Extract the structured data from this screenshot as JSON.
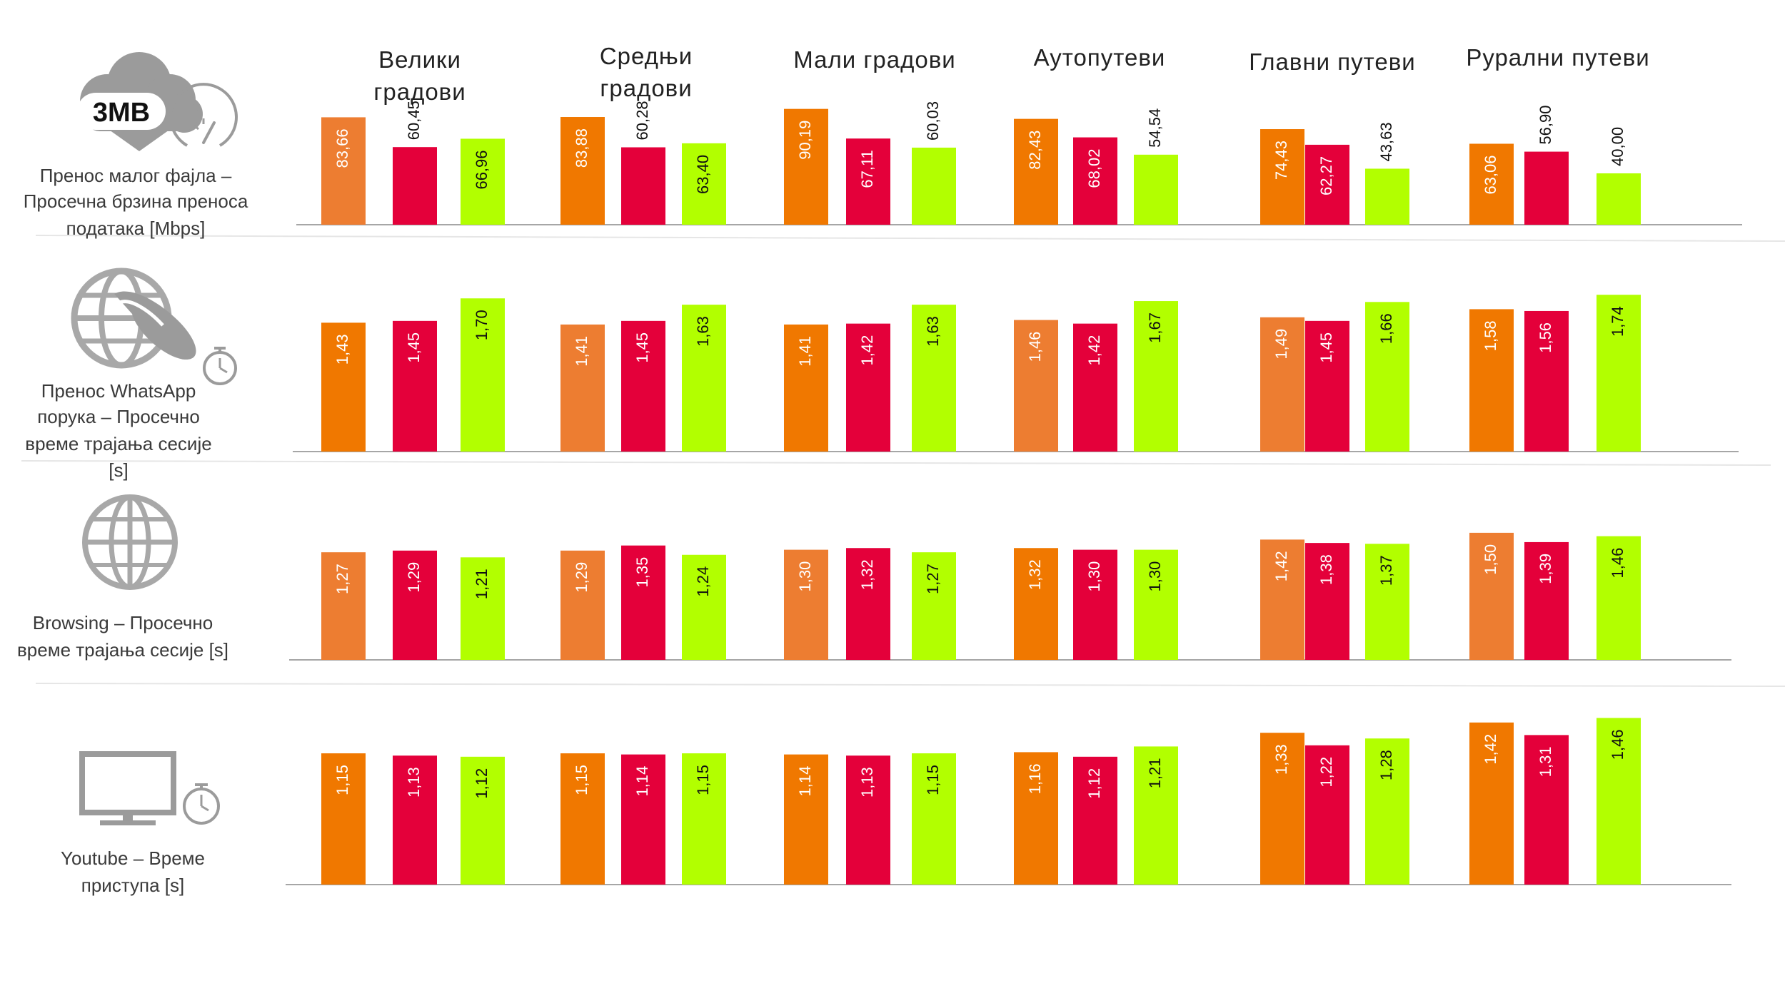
{
  "chart_data": {
    "type": "bar",
    "categories": [
      "Велики градови",
      "Средњи градови",
      "Мали градови",
      "Аутопутеви",
      "Главни путеви",
      "Рурални путеви"
    ],
    "colors": [
      "#F07800",
      "#E4003A",
      "#B2FF00"
    ],
    "alt_first_color": "#ED7D31",
    "panels": [
      {
        "label": "Пренос малог фајла – Просечна брзина преноса података [Mbps]",
        "icon": "cloud-download-icon",
        "icon_text": "3MB",
        "ylim": [
          0,
          100
        ],
        "values": [
          [
            83.66,
            60.45,
            66.96
          ],
          [
            83.88,
            60.28,
            63.4
          ],
          [
            90.19,
            67.11,
            60.03
          ],
          [
            82.43,
            68.02,
            54.54
          ],
          [
            74.43,
            62.27,
            43.63
          ],
          [
            63.06,
            56.9,
            40.0
          ]
        ],
        "labels": [
          [
            "83,66",
            "60,45",
            "66,96"
          ],
          [
            "83,88",
            "60,28",
            "63,40"
          ],
          [
            "90,19",
            "67,11",
            "60,03"
          ],
          [
            "82,43",
            "68,02",
            "54,54"
          ],
          [
            "74,43",
            "62,27",
            "43,63"
          ],
          [
            "63,06",
            "56,90",
            "40,00"
          ]
        ]
      },
      {
        "label": "Пренос WhatsApp порука – Просечно време трајања сесије [s]",
        "icon": "whatsapp-globe-timer-icon",
        "ylim": [
          0,
          1.9
        ],
        "values": [
          [
            1.43,
            1.45,
            1.7
          ],
          [
            1.41,
            1.45,
            1.63
          ],
          [
            1.41,
            1.42,
            1.63
          ],
          [
            1.46,
            1.42,
            1.67
          ],
          [
            1.49,
            1.45,
            1.66
          ],
          [
            1.58,
            1.56,
            1.74
          ]
        ],
        "labels": [
          [
            "1,43",
            "1,45",
            "1,70"
          ],
          [
            "1,41",
            "1,45",
            "1,63"
          ],
          [
            "1,41",
            "1,42",
            "1,63"
          ],
          [
            "1,46",
            "1,42",
            "1,67"
          ],
          [
            "1,49",
            "1,45",
            "1,66"
          ],
          [
            "1,58",
            "1,56",
            "1,74"
          ]
        ]
      },
      {
        "label": "Browsing – Просечно време трајања сесије [s]",
        "icon": "globe-icon",
        "ylim": [
          0,
          1.6
        ],
        "values": [
          [
            1.27,
            1.29,
            1.21
          ],
          [
            1.29,
            1.35,
            1.24
          ],
          [
            1.3,
            1.32,
            1.27
          ],
          [
            1.32,
            1.3,
            1.3
          ],
          [
            1.42,
            1.38,
            1.37
          ],
          [
            1.5,
            1.39,
            1.46
          ]
        ],
        "labels": [
          [
            "1,27",
            "1,29",
            "1,21"
          ],
          [
            "1,29",
            "1,35",
            "1,24"
          ],
          [
            "1,30",
            "1,32",
            "1,27"
          ],
          [
            "1,32",
            "1,30",
            "1,30"
          ],
          [
            "1,42",
            "1,38",
            "1,37"
          ],
          [
            "1,50",
            "1,39",
            "1,46"
          ]
        ]
      },
      {
        "label": "Youtube – Време приступа [s]",
        "icon": "monitor-timer-icon",
        "ylim": [
          0,
          1.5
        ],
        "values": [
          [
            1.15,
            1.13,
            1.12
          ],
          [
            1.15,
            1.14,
            1.15
          ],
          [
            1.14,
            1.13,
            1.15
          ],
          [
            1.16,
            1.12,
            1.21
          ],
          [
            1.33,
            1.22,
            1.28
          ],
          [
            1.42,
            1.31,
            1.46
          ]
        ],
        "labels": [
          [
            "1,15",
            "1,13",
            "1,12"
          ],
          [
            "1,15",
            "1,14",
            "1,15"
          ],
          [
            "1,14",
            "1,13",
            "1,15"
          ],
          [
            "1,16",
            "1,12",
            "1,21"
          ],
          [
            "1,33",
            "1,22",
            "1,28"
          ],
          [
            "1,42",
            "1,31",
            "1,46"
          ]
        ]
      }
    ]
  }
}
